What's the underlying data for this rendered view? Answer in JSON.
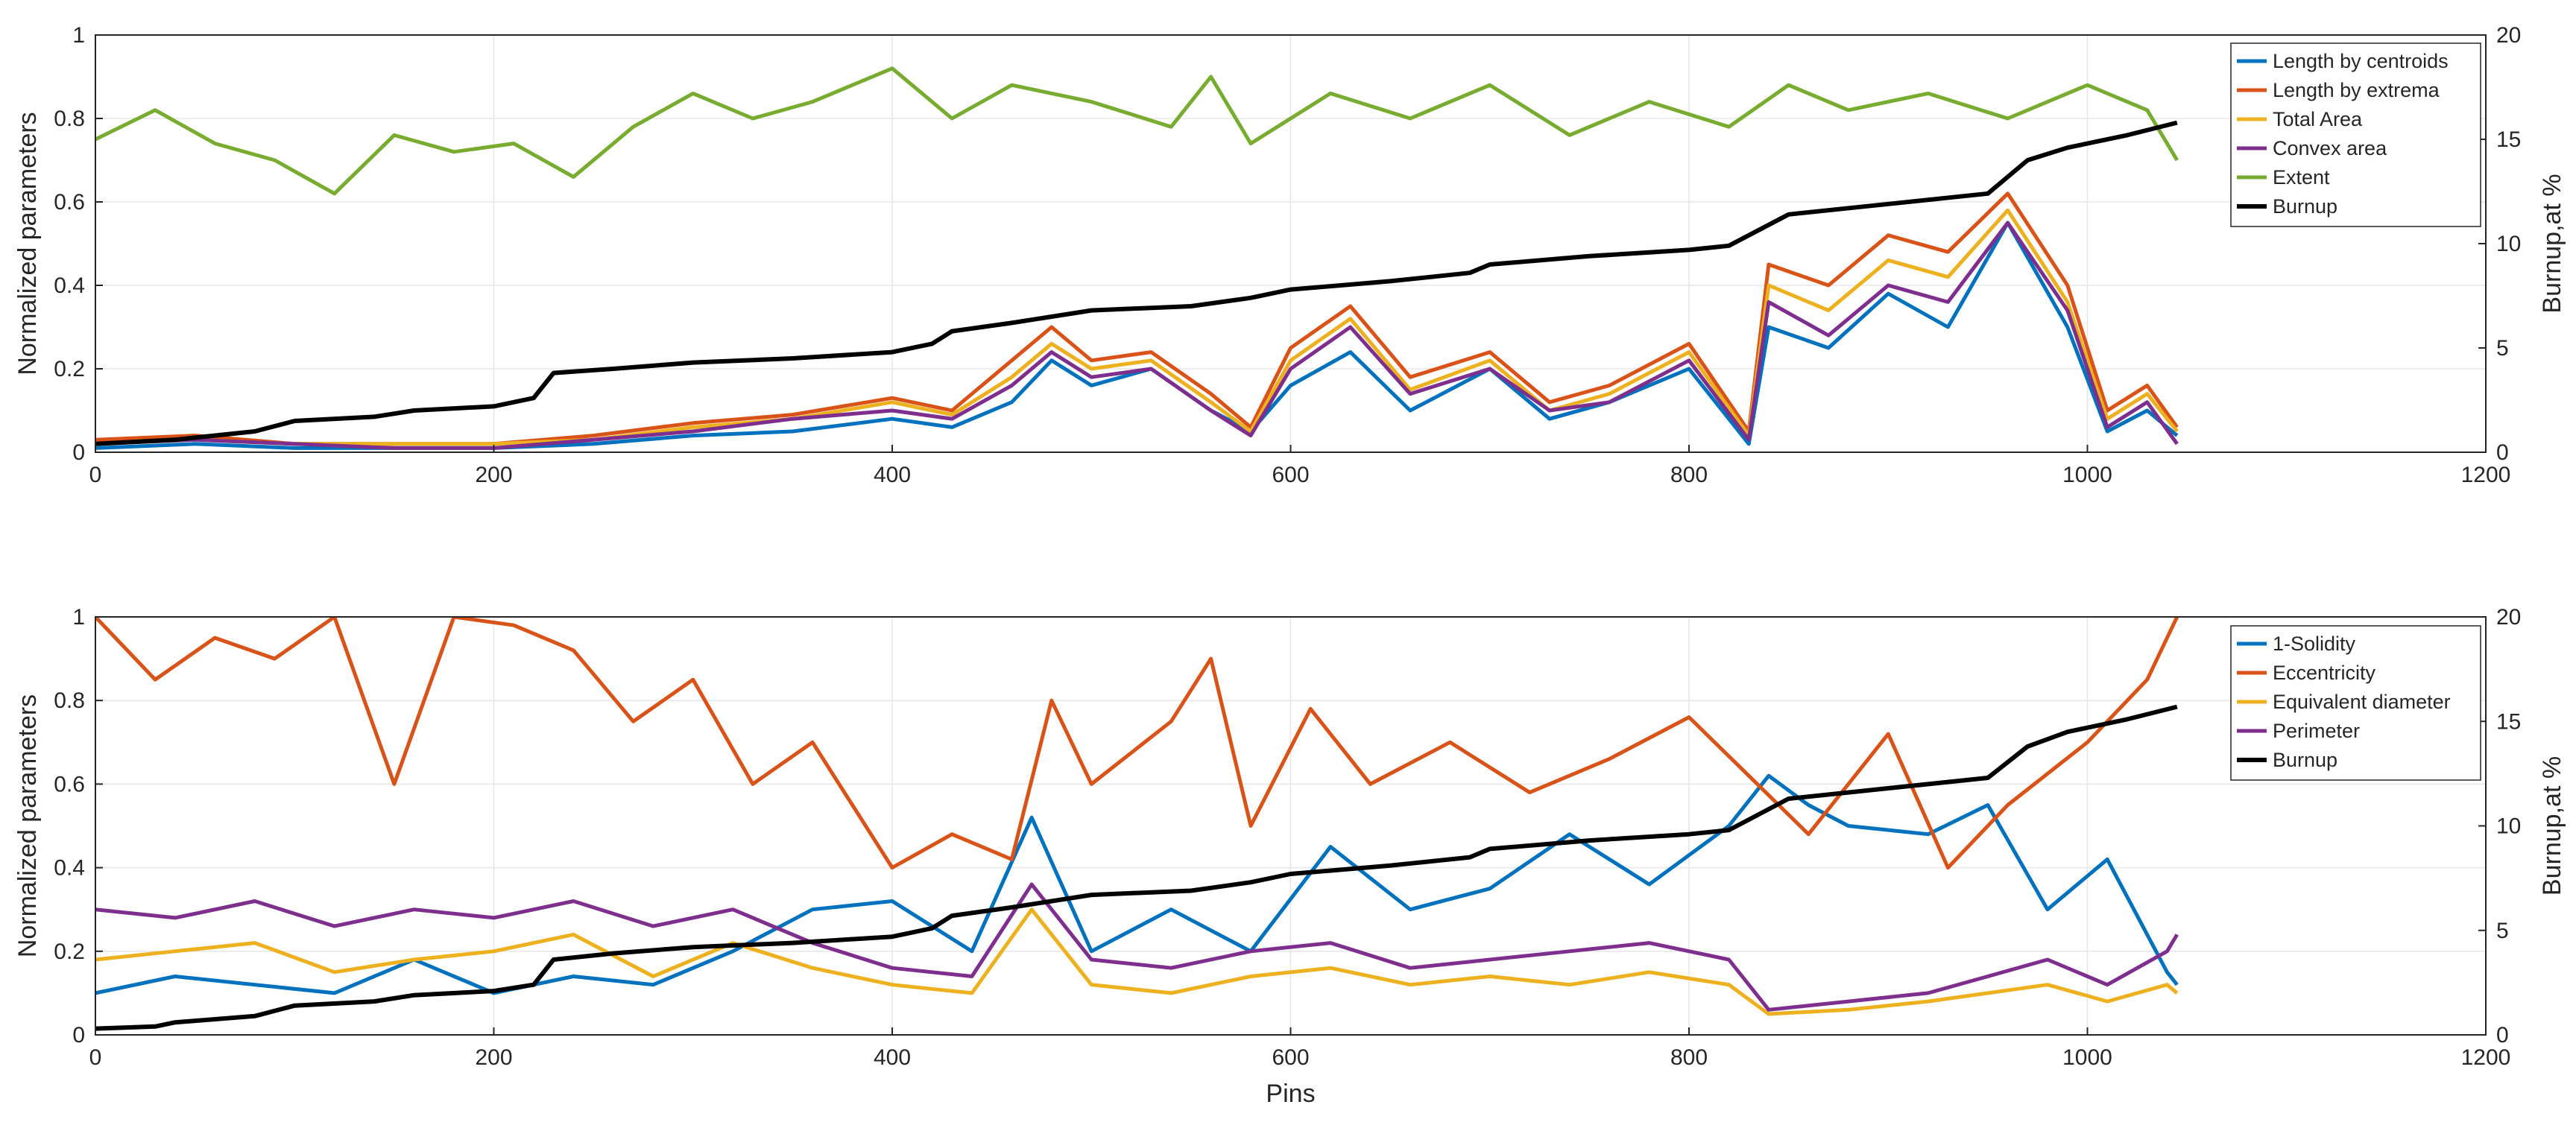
{
  "chart_data": [
    {
      "type": "line",
      "title": "",
      "xlabel": "",
      "ylabel": "Normalized parameters",
      "ylabel_right": "Burnup,at %",
      "xlim": [
        0,
        1200
      ],
      "ylim": [
        0,
        1
      ],
      "ylim_right": [
        0,
        20
      ],
      "xticks": [
        "0",
        "200",
        "400",
        "600",
        "800",
        "1000",
        "1200"
      ],
      "yticks": [
        "0",
        "0.2",
        "0.4",
        "0.6",
        "0.8",
        "1"
      ],
      "yticks_right": [
        "0",
        "5",
        "10",
        "15",
        "20"
      ],
      "grid": true,
      "legend_position": "top-right",
      "series": [
        {
          "name": "Length by centroids",
          "color": "#0072BD",
          "axis": "left",
          "x": [
            0,
            50,
            100,
            150,
            200,
            250,
            300,
            350,
            400,
            430,
            460,
            480,
            500,
            530,
            560,
            580,
            600,
            630,
            660,
            700,
            730,
            760,
            800,
            830,
            840,
            870,
            900,
            930,
            960,
            990,
            1010,
            1030,
            1045
          ],
          "y": [
            0.01,
            0.02,
            0.01,
            0.01,
            0.01,
            0.02,
            0.04,
            0.05,
            0.08,
            0.06,
            0.12,
            0.22,
            0.16,
            0.2,
            0.1,
            0.05,
            0.16,
            0.24,
            0.1,
            0.2,
            0.08,
            0.12,
            0.2,
            0.02,
            0.3,
            0.25,
            0.38,
            0.3,
            0.55,
            0.3,
            0.05,
            0.1,
            0.04
          ]
        },
        {
          "name": "Length by extrema",
          "color": "#D95319",
          "axis": "left",
          "x": [
            0,
            50,
            100,
            150,
            200,
            250,
            300,
            350,
            400,
            430,
            460,
            480,
            500,
            530,
            560,
            580,
            600,
            630,
            660,
            700,
            730,
            760,
            800,
            830,
            840,
            870,
            900,
            930,
            960,
            990,
            1010,
            1030,
            1045
          ],
          "y": [
            0.03,
            0.04,
            0.02,
            0.02,
            0.02,
            0.04,
            0.07,
            0.09,
            0.13,
            0.1,
            0.22,
            0.3,
            0.22,
            0.24,
            0.14,
            0.06,
            0.25,
            0.35,
            0.18,
            0.24,
            0.12,
            0.16,
            0.26,
            0.05,
            0.45,
            0.4,
            0.52,
            0.48,
            0.62,
            0.4,
            0.1,
            0.16,
            0.06
          ]
        },
        {
          "name": "Total Area",
          "color": "#EDB120",
          "axis": "left",
          "x": [
            0,
            50,
            100,
            150,
            200,
            250,
            300,
            350,
            400,
            430,
            460,
            480,
            500,
            530,
            560,
            580,
            600,
            630,
            660,
            700,
            730,
            760,
            800,
            830,
            840,
            870,
            900,
            930,
            960,
            990,
            1010,
            1030,
            1045
          ],
          "y": [
            0.02,
            0.03,
            0.02,
            0.02,
            0.02,
            0.03,
            0.06,
            0.08,
            0.12,
            0.09,
            0.18,
            0.26,
            0.2,
            0.22,
            0.12,
            0.05,
            0.22,
            0.32,
            0.15,
            0.22,
            0.1,
            0.14,
            0.24,
            0.04,
            0.4,
            0.34,
            0.46,
            0.42,
            0.58,
            0.36,
            0.08,
            0.14,
            0.05
          ]
        },
        {
          "name": "Convex area",
          "color": "#7E2F8E",
          "axis": "left",
          "x": [
            0,
            50,
            100,
            150,
            200,
            250,
            300,
            350,
            400,
            430,
            460,
            480,
            500,
            530,
            560,
            580,
            600,
            630,
            660,
            700,
            730,
            760,
            800,
            830,
            840,
            870,
            900,
            930,
            960,
            990,
            1010,
            1030,
            1045
          ],
          "y": [
            0.02,
            0.03,
            0.02,
            0.01,
            0.01,
            0.03,
            0.05,
            0.08,
            0.1,
            0.08,
            0.16,
            0.24,
            0.18,
            0.2,
            0.1,
            0.04,
            0.2,
            0.3,
            0.14,
            0.2,
            0.1,
            0.12,
            0.22,
            0.03,
            0.36,
            0.28,
            0.4,
            0.36,
            0.55,
            0.34,
            0.06,
            0.12,
            0.02
          ]
        },
        {
          "name": "Extent",
          "color": "#77AC30",
          "axis": "left",
          "x": [
            0,
            30,
            60,
            90,
            120,
            150,
            180,
            210,
            240,
            270,
            300,
            330,
            360,
            400,
            430,
            460,
            500,
            540,
            560,
            580,
            620,
            660,
            700,
            740,
            780,
            820,
            850,
            880,
            920,
            960,
            1000,
            1030,
            1045
          ],
          "y": [
            0.75,
            0.82,
            0.74,
            0.7,
            0.62,
            0.76,
            0.72,
            0.74,
            0.66,
            0.78,
            0.86,
            0.8,
            0.84,
            0.92,
            0.8,
            0.88,
            0.84,
            0.78,
            0.9,
            0.74,
            0.86,
            0.8,
            0.88,
            0.76,
            0.84,
            0.78,
            0.88,
            0.82,
            0.86,
            0.8,
            0.88,
            0.82,
            0.7
          ]
        },
        {
          "name": "Burnup",
          "color": "#000000",
          "axis": "right",
          "x": [
            0,
            40,
            80,
            100,
            140,
            160,
            200,
            220,
            230,
            260,
            300,
            350,
            400,
            420,
            430,
            460,
            500,
            550,
            580,
            600,
            650,
            690,
            700,
            750,
            800,
            820,
            830,
            850,
            900,
            950,
            970,
            990,
            1020,
            1045
          ],
          "y": [
            0.4,
            0.6,
            1.0,
            1.5,
            1.7,
            2.0,
            2.2,
            2.6,
            3.8,
            4.0,
            4.3,
            4.5,
            4.8,
            5.2,
            5.8,
            6.2,
            6.8,
            7.0,
            7.4,
            7.8,
            8.2,
            8.6,
            9.0,
            9.4,
            9.7,
            9.9,
            10.4,
            11.4,
            11.9,
            12.4,
            14.0,
            14.6,
            15.2,
            15.8
          ]
        }
      ]
    },
    {
      "type": "line",
      "title": "",
      "xlabel": "Pins",
      "ylabel": "Normalized parameters",
      "ylabel_right": "Burnup,at %",
      "xlim": [
        0,
        1200
      ],
      "ylim": [
        0,
        1
      ],
      "ylim_right": [
        0,
        20
      ],
      "xticks": [
        "0",
        "200",
        "400",
        "600",
        "800",
        "1000",
        "1200"
      ],
      "yticks": [
        "0",
        "0.2",
        "0.4",
        "0.6",
        "0.8",
        "1"
      ],
      "yticks_right": [
        "0",
        "5",
        "10",
        "15",
        "20"
      ],
      "grid": true,
      "legend_position": "top-right",
      "series": [
        {
          "name": "1-Solidity",
          "color": "#0072BD",
          "axis": "left",
          "x": [
            0,
            40,
            80,
            120,
            160,
            200,
            240,
            280,
            320,
            360,
            400,
            440,
            470,
            500,
            540,
            580,
            620,
            660,
            700,
            740,
            780,
            820,
            840,
            860,
            880,
            920,
            950,
            980,
            1010,
            1040,
            1045
          ],
          "y": [
            0.1,
            0.14,
            0.12,
            0.1,
            0.18,
            0.1,
            0.14,
            0.12,
            0.2,
            0.3,
            0.32,
            0.2,
            0.52,
            0.2,
            0.3,
            0.2,
            0.45,
            0.3,
            0.35,
            0.48,
            0.36,
            0.5,
            0.62,
            0.55,
            0.5,
            0.48,
            0.55,
            0.3,
            0.42,
            0.15,
            0.12
          ]
        },
        {
          "name": "Eccentricity",
          "color": "#D95319",
          "axis": "left",
          "x": [
            0,
            30,
            60,
            90,
            120,
            150,
            180,
            210,
            240,
            270,
            300,
            330,
            360,
            400,
            430,
            460,
            480,
            500,
            540,
            560,
            580,
            610,
            640,
            680,
            720,
            760,
            800,
            830,
            860,
            900,
            930,
            960,
            1000,
            1030,
            1045
          ],
          "y": [
            1.0,
            0.85,
            0.95,
            0.9,
            1.0,
            0.6,
            1.0,
            0.98,
            0.92,
            0.75,
            0.85,
            0.6,
            0.7,
            0.4,
            0.48,
            0.42,
            0.8,
            0.6,
            0.75,
            0.9,
            0.5,
            0.78,
            0.6,
            0.7,
            0.58,
            0.66,
            0.76,
            0.62,
            0.48,
            0.72,
            0.4,
            0.55,
            0.7,
            0.85,
            1.0
          ]
        },
        {
          "name": "Equivalent diameter",
          "color": "#EDB120",
          "axis": "left",
          "x": [
            0,
            40,
            80,
            120,
            160,
            200,
            240,
            280,
            320,
            360,
            400,
            440,
            470,
            500,
            540,
            580,
            620,
            660,
            700,
            740,
            780,
            820,
            840,
            880,
            920,
            950,
            980,
            1010,
            1040,
            1045
          ],
          "y": [
            0.18,
            0.2,
            0.22,
            0.15,
            0.18,
            0.2,
            0.24,
            0.14,
            0.22,
            0.16,
            0.12,
            0.1,
            0.3,
            0.12,
            0.1,
            0.14,
            0.16,
            0.12,
            0.14,
            0.12,
            0.15,
            0.12,
            0.05,
            0.06,
            0.08,
            0.1,
            0.12,
            0.08,
            0.12,
            0.1
          ]
        },
        {
          "name": "Perimeter",
          "color": "#7E2F8E",
          "axis": "left",
          "x": [
            0,
            40,
            80,
            120,
            160,
            200,
            240,
            280,
            320,
            360,
            400,
            440,
            470,
            500,
            540,
            580,
            620,
            660,
            700,
            740,
            780,
            820,
            840,
            880,
            920,
            950,
            980,
            1010,
            1040,
            1045
          ],
          "y": [
            0.3,
            0.28,
            0.32,
            0.26,
            0.3,
            0.28,
            0.32,
            0.26,
            0.3,
            0.22,
            0.16,
            0.14,
            0.36,
            0.18,
            0.16,
            0.2,
            0.22,
            0.16,
            0.18,
            0.2,
            0.22,
            0.18,
            0.06,
            0.08,
            0.1,
            0.14,
            0.18,
            0.12,
            0.2,
            0.24
          ]
        },
        {
          "name": "Burnup",
          "color": "#000000",
          "axis": "right",
          "x": [
            0,
            30,
            40,
            80,
            100,
            140,
            160,
            200,
            220,
            230,
            260,
            300,
            350,
            400,
            420,
            430,
            460,
            500,
            550,
            580,
            600,
            650,
            690,
            700,
            750,
            800,
            820,
            830,
            850,
            900,
            950,
            970,
            990,
            1020,
            1045
          ],
          "y": [
            0.3,
            0.4,
            0.6,
            0.9,
            1.4,
            1.6,
            1.9,
            2.1,
            2.4,
            3.6,
            3.9,
            4.2,
            4.4,
            4.7,
            5.1,
            5.7,
            6.1,
            6.7,
            6.9,
            7.3,
            7.7,
            8.1,
            8.5,
            8.9,
            9.3,
            9.6,
            9.8,
            10.3,
            11.3,
            11.8,
            12.3,
            13.8,
            14.5,
            15.1,
            15.7
          ]
        }
      ]
    }
  ]
}
